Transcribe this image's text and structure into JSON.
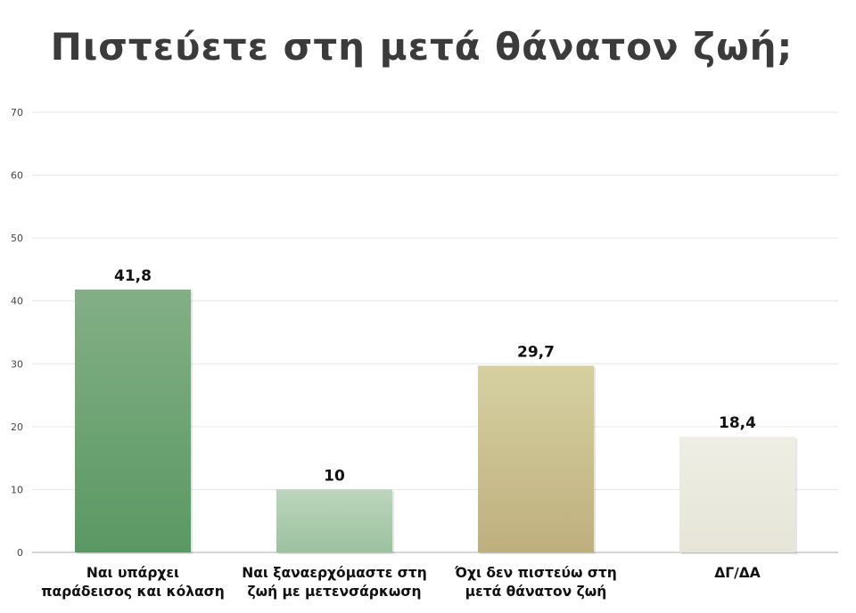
{
  "chart_data": {
    "type": "bar",
    "title": "Πιστεύετε στη μετά θάνατον ζωή;",
    "xlabel": "",
    "ylabel": "",
    "ylim": [
      0,
      70
    ],
    "yticks": [
      0,
      10,
      20,
      30,
      40,
      50,
      60,
      70
    ],
    "grid": true,
    "categories": [
      [
        "Ναι υπάρχει",
        "παράδεισος και κόλαση"
      ],
      [
        "Ναι ξαναερχόμαστε στη",
        "ζωή με μετενσάρκωση"
      ],
      [
        "Όχι δεν πιστεύω στη",
        "μετά θάνατον ζωή"
      ],
      [
        "ΔΓ/ΔΑ"
      ]
    ],
    "values": [
      41.8,
      10,
      29.7,
      18.4
    ],
    "value_labels": [
      "41,8",
      "10",
      "29,7",
      "18,4"
    ],
    "colors": [
      [
        "#83af86",
        "#5a9863"
      ],
      [
        "#bcd6bd",
        "#9cc19f"
      ],
      [
        "#d6d0a0",
        "#beb07e"
      ],
      [
        "#eeeee4",
        "#e6e5d8"
      ]
    ]
  }
}
